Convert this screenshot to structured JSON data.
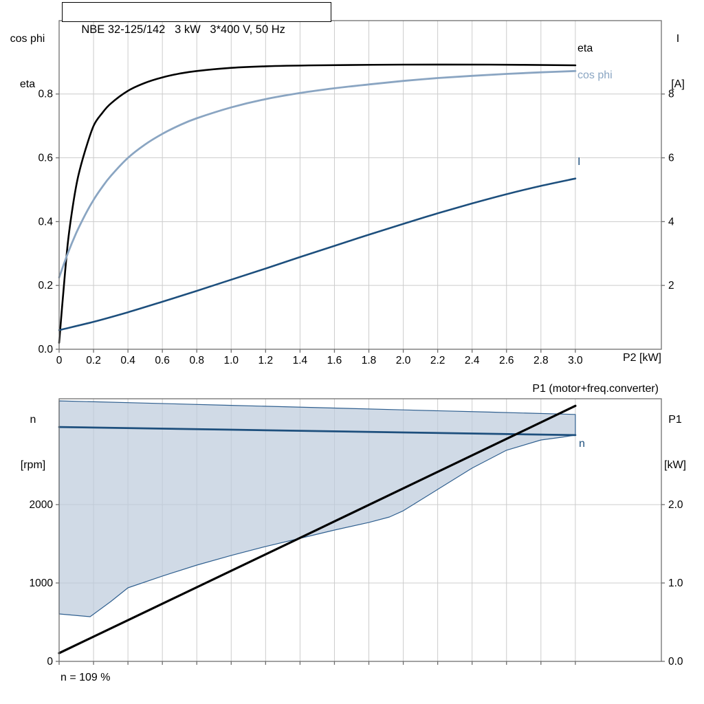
{
  "colors": {
    "background": "#ffffff",
    "grid": "#cccccc",
    "frame": "#6e6e6e",
    "text": "#000000",
    "eta_curve": "#000000",
    "cos_phi_curve": "#8aa5c2",
    "current_curve": "#1d4f7d",
    "speed_curve": "#1d4f7d",
    "p1_curve": "#000000",
    "band_fill": "#bccbdc",
    "band_stroke": "#2f5f8f"
  },
  "chart_data": [
    {
      "type": "line",
      "title": "NBE 32-125/142   3 kW   3*400 V, 50 Hz",
      "xlabel": "P2 [kW]",
      "ylabel_left": [
        "cos phi",
        "eta"
      ],
      "ylabel_right": [
        "I",
        "[A]"
      ],
      "xlim": [
        0,
        3.5
      ],
      "ylim_left": [
        0,
        1.03
      ],
      "ylim_right": [
        0,
        10.3
      ],
      "grid": true,
      "x_ticks": {
        "values": [
          0,
          0.2,
          0.4,
          0.6,
          0.8,
          1.0,
          1.2,
          1.4,
          1.6,
          1.8,
          2.0,
          2.2,
          2.4,
          2.6,
          2.8,
          3.0
        ],
        "labels": [
          "0",
          "0.2",
          "0.4",
          "0.6",
          "0.8",
          "1.0",
          "1.2",
          "1.4",
          "1.6",
          "1.8",
          "2.0",
          "2.2",
          "2.4",
          "2.6",
          "2.8",
          "3.0"
        ]
      },
      "y_ticks_left": {
        "values": [
          0,
          0.2,
          0.4,
          0.6,
          0.8
        ],
        "labels": [
          "0.0",
          "0.2",
          "0.4",
          "0.6",
          "0.8"
        ]
      },
      "y_ticks_right": {
        "values": [
          2,
          4,
          6,
          8
        ],
        "labels": [
          "2",
          "4",
          "6",
          "8"
        ]
      },
      "series": [
        {
          "name": "eta",
          "type": "line",
          "axis": "left",
          "color": "#000000",
          "width": 2.6,
          "smooth": true,
          "points": [
            [
              0,
              0.02
            ],
            [
              0.02,
              0.15
            ],
            [
              0.05,
              0.33
            ],
            [
              0.08,
              0.45
            ],
            [
              0.11,
              0.54
            ],
            [
              0.15,
              0.62
            ],
            [
              0.2,
              0.7
            ],
            [
              0.25,
              0.74
            ],
            [
              0.3,
              0.77
            ],
            [
              0.4,
              0.81
            ],
            [
              0.5,
              0.835
            ],
            [
              0.6,
              0.852
            ],
            [
              0.7,
              0.864
            ],
            [
              0.8,
              0.872
            ],
            [
              1.0,
              0.882
            ],
            [
              1.2,
              0.887
            ],
            [
              1.5,
              0.89
            ],
            [
              2.0,
              0.892
            ],
            [
              2.5,
              0.892
            ],
            [
              3.0,
              0.89
            ]
          ]
        },
        {
          "name": "cos phi",
          "type": "line",
          "axis": "left",
          "color": "#8aa5c2",
          "width": 2.8,
          "smooth": true,
          "points": [
            [
              0,
              0.225
            ],
            [
              0.05,
              0.3
            ],
            [
              0.1,
              0.365
            ],
            [
              0.15,
              0.42
            ],
            [
              0.2,
              0.468
            ],
            [
              0.25,
              0.508
            ],
            [
              0.3,
              0.543
            ],
            [
              0.4,
              0.6
            ],
            [
              0.5,
              0.642
            ],
            [
              0.6,
              0.675
            ],
            [
              0.7,
              0.702
            ],
            [
              0.8,
              0.724
            ],
            [
              1.0,
              0.758
            ],
            [
              1.2,
              0.784
            ],
            [
              1.4,
              0.803
            ],
            [
              1.6,
              0.818
            ],
            [
              1.8,
              0.83
            ],
            [
              2.0,
              0.841
            ],
            [
              2.2,
              0.85
            ],
            [
              2.4,
              0.857
            ],
            [
              2.6,
              0.863
            ],
            [
              2.8,
              0.868
            ],
            [
              3.0,
              0.872
            ]
          ]
        },
        {
          "name": "I",
          "type": "line",
          "axis": "right",
          "color": "#1d4f7d",
          "width": 2.6,
          "smooth": true,
          "points": [
            [
              0,
              0.6
            ],
            [
              0.2,
              0.86
            ],
            [
              0.4,
              1.16
            ],
            [
              0.6,
              1.49
            ],
            [
              0.8,
              1.83
            ],
            [
              1.0,
              2.18
            ],
            [
              1.2,
              2.53
            ],
            [
              1.4,
              2.89
            ],
            [
              1.6,
              3.24
            ],
            [
              1.8,
              3.59
            ],
            [
              2.0,
              3.93
            ],
            [
              2.2,
              4.26
            ],
            [
              2.4,
              4.57
            ],
            [
              2.6,
              4.86
            ],
            [
              2.8,
              5.12
            ],
            [
              3.0,
              5.35
            ]
          ]
        }
      ]
    },
    {
      "type": "line",
      "title": "",
      "xlabel": "",
      "ylabel_left": [
        "n",
        "[rpm]"
      ],
      "ylabel_right": [
        "P1",
        "[kW]"
      ],
      "note": "n = 109 %",
      "xlim": [
        0,
        3.5
      ],
      "ylim_left": [
        0,
        3350
      ],
      "ylim_right": [
        0,
        3.35
      ],
      "grid": true,
      "x_ticks": {
        "values": [
          0,
          0.2,
          0.4,
          0.6,
          0.8,
          1.0,
          1.2,
          1.4,
          1.6,
          1.8,
          2.0,
          2.2,
          2.4,
          2.6,
          2.8,
          3.0
        ],
        "labels": []
      },
      "y_ticks_left": {
        "values": [
          0,
          1000,
          2000
        ],
        "labels": [
          "0",
          "1000",
          "2000"
        ]
      },
      "y_ticks_right": {
        "values": [
          0,
          1,
          2
        ],
        "labels": [
          "0.0",
          "1.0",
          "2.0"
        ]
      },
      "series": [
        {
          "name": "operating-range",
          "type": "band",
          "axis": "left",
          "fill": "#bccbdc",
          "fill_opacity": 0.7,
          "stroke": "#2f5f8f",
          "stroke_width": 1.2,
          "upper": [
            [
              0,
              3323
            ],
            [
              0.5,
              3295
            ],
            [
              1.0,
              3266
            ],
            [
              1.5,
              3237
            ],
            [
              2.0,
              3208
            ],
            [
              2.5,
              3180
            ],
            [
              3.0,
              3150
            ]
          ],
          "lower": [
            [
              0,
              605
            ],
            [
              0.18,
              570
            ],
            [
              0.3,
              763
            ],
            [
              0.4,
              938
            ],
            [
              0.6,
              1088
            ],
            [
              0.8,
              1228
            ],
            [
              1.0,
              1351
            ],
            [
              1.2,
              1465
            ],
            [
              1.4,
              1570
            ],
            [
              1.6,
              1675
            ],
            [
              1.8,
              1772
            ],
            [
              1.92,
              1842
            ],
            [
              2.0,
              1921
            ],
            [
              2.2,
              2193
            ],
            [
              2.4,
              2465
            ],
            [
              2.6,
              2693
            ],
            [
              2.8,
              2824
            ],
            [
              2.92,
              2859
            ],
            [
              3.0,
              2886
            ]
          ]
        },
        {
          "name": "n",
          "type": "line",
          "axis": "left",
          "color": "#1d4f7d",
          "width": 2.8,
          "smooth": false,
          "points": [
            [
              0,
              2990
            ],
            [
              1.0,
              2955
            ],
            [
              2.0,
              2920
            ],
            [
              3.0,
              2886
            ]
          ]
        },
        {
          "name": "P1 (motor+freq.converter)",
          "type": "line",
          "axis": "right",
          "color": "#000000",
          "width": 3.2,
          "smooth": false,
          "points": [
            [
              0,
              0.105
            ],
            [
              1.5,
              1.68
            ],
            [
              3.0,
              3.26
            ]
          ]
        }
      ]
    }
  ]
}
